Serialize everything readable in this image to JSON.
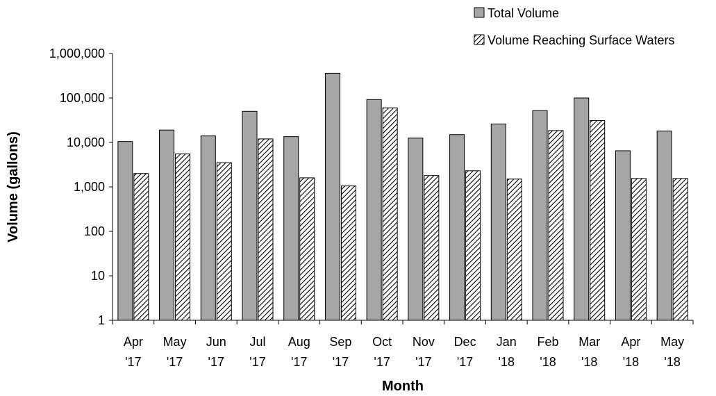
{
  "chart_data": {
    "type": "bar",
    "y_scale": "log",
    "ylim": [
      1,
      1000000
    ],
    "y_ticks": [
      "1",
      "10",
      "100",
      "1,000",
      "10,000",
      "100,000",
      "1,000,000"
    ],
    "xlabel": "Month",
    "ylabel": "Volume (gallons)",
    "legend_position": "top-right",
    "categories": [
      [
        "Apr",
        "'17"
      ],
      [
        "May",
        "'17"
      ],
      [
        "Jun",
        "'17"
      ],
      [
        "Jul",
        "'17"
      ],
      [
        "Aug",
        "'17"
      ],
      [
        "Sep",
        "'17"
      ],
      [
        "Oct",
        "'17"
      ],
      [
        "Nov",
        "'17"
      ],
      [
        "Dec",
        "'17"
      ],
      [
        "Jan",
        "'18"
      ],
      [
        "Feb",
        "'18"
      ],
      [
        "Mar",
        "'18"
      ],
      [
        "Apr",
        "'18"
      ],
      [
        "May",
        "'18"
      ]
    ],
    "series": [
      {
        "name": "Total Volume",
        "fill": "solid",
        "color": "#a6a6a6",
        "values": [
          10500,
          19000,
          14000,
          50000,
          13500,
          360000,
          92000,
          12500,
          15000,
          26000,
          52000,
          100000,
          6500,
          18000
        ]
      },
      {
        "name": "Volume Reaching Surface Waters",
        "fill": "hatched",
        "color": "#000000",
        "values": [
          2000,
          5500,
          3500,
          12000,
          1600,
          1050,
          60000,
          1800,
          2300,
          1500,
          18500,
          31000,
          1550,
          1550
        ]
      }
    ]
  }
}
